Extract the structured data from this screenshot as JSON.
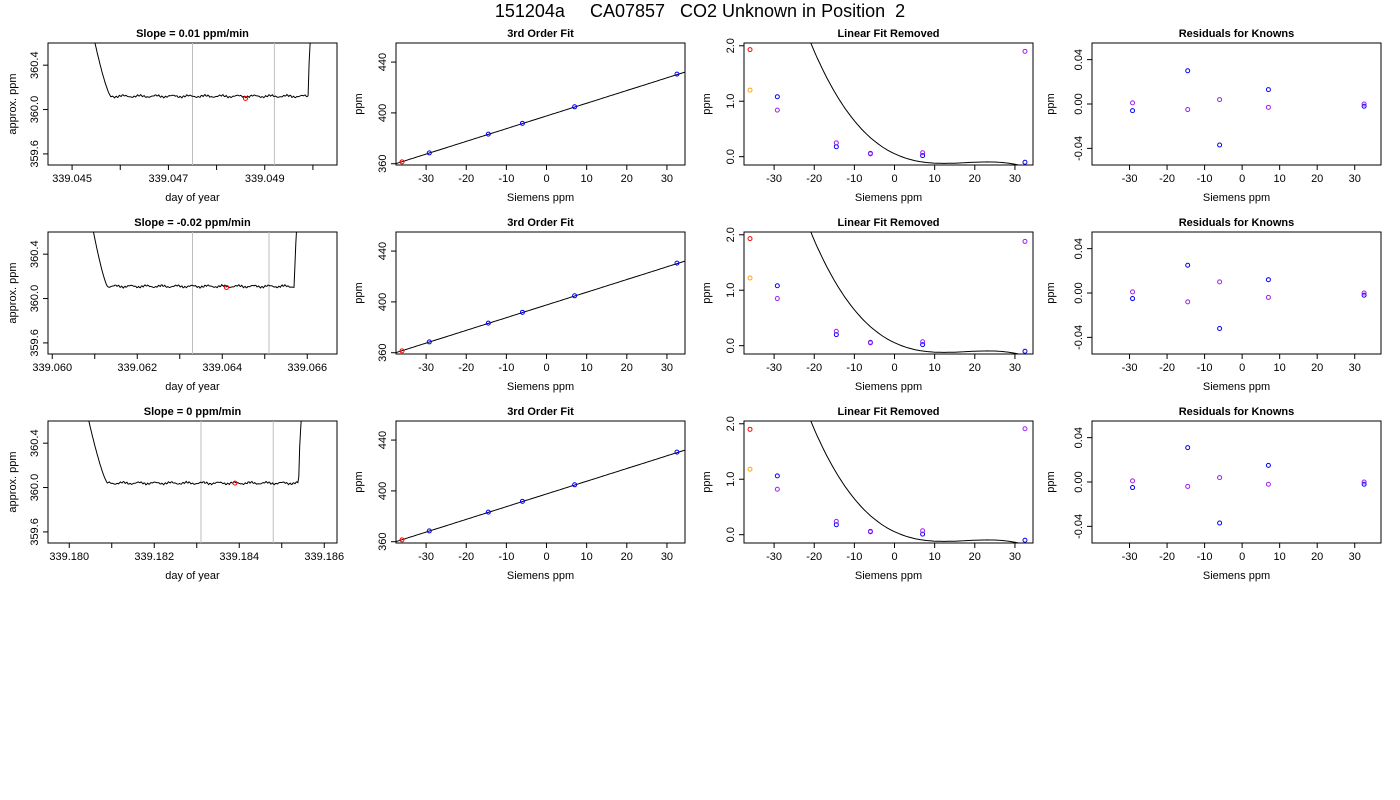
{
  "page_title": "151204a     CA07857   CO2 Unknown in Position  2",
  "colors": {
    "trace": "#000000",
    "guide_line": "#bebebe",
    "marker_red": "#ff0000",
    "marker_blue": "#0000ff",
    "marker_magenta": "#a020f0",
    "marker_orange": "#ffa500"
  },
  "chart_data": [
    {
      "id": "r0c0",
      "type": "line",
      "title": "Slope =  0.01  ppm/min",
      "xlabel": "day of year",
      "ylabel": "approx. ppm",
      "xlim": [
        339.0445,
        339.0505
      ],
      "ylim": [
        359.5,
        360.6
      ],
      "xticks": [
        339.045,
        339.046,
        339.047,
        339.048,
        339.049,
        339.05
      ],
      "xticklabels": [
        "339.045",
        "",
        "339.047",
        "",
        "339.049",
        ""
      ],
      "yticks": [
        359.6,
        360.0,
        360.4
      ],
      "yticklabels": [
        "359.6",
        "360.0",
        "360.4"
      ],
      "vlines": [
        339.0475,
        339.0492
      ],
      "trace": {
        "start": 339.0453,
        "end": 339.0501,
        "level": 360.12,
        "jump": 339.0458,
        "rise": 339.0499
      },
      "markers": [
        {
          "x": 339.0486,
          "y": 360.1,
          "color": "red"
        }
      ]
    },
    {
      "id": "r0c1",
      "type": "scatter",
      "title": "3rd Order Fit",
      "xlabel": "Siemens ppm",
      "ylabel": "ppm",
      "xlim": [
        -37.5,
        34.5
      ],
      "ylim": [
        359,
        455
      ],
      "xticks": [
        -30,
        -20,
        -10,
        0,
        10,
        20,
        30
      ],
      "xticklabels": [
        "-30",
        "-20",
        "-10",
        "0",
        "10",
        "20",
        "30"
      ],
      "yticks": [
        360,
        400,
        440
      ],
      "yticklabels": [
        "360",
        "400",
        "440"
      ],
      "curve": {
        "kind": "linear",
        "slope": 1.0,
        "intercept": 397.6,
        "range": [
          -37.5,
          34.5
        ]
      },
      "points": [
        {
          "x": -36.0,
          "y": 361.5,
          "color": "red"
        },
        {
          "x": -29.2,
          "y": 368.5,
          "color": "blue"
        },
        {
          "x": -14.5,
          "y": 383.3,
          "color": "blue"
        },
        {
          "x": -6.0,
          "y": 391.8,
          "color": "blue"
        },
        {
          "x": 7.0,
          "y": 404.8,
          "color": "blue"
        },
        {
          "x": 32.5,
          "y": 430.5,
          "color": "blue"
        }
      ]
    },
    {
      "id": "r0c2",
      "type": "scatter",
      "title": "Linear Fit Removed",
      "xlabel": "Siemens ppm",
      "ylabel": "ppm",
      "xlim": [
        -37.5,
        34.5
      ],
      "ylim": [
        -0.15,
        2.05
      ],
      "xticks": [
        -30,
        -20,
        -10,
        0,
        10,
        20,
        30
      ],
      "xticklabels": [
        "-30",
        "-20",
        "-10",
        "0",
        "10",
        "20",
        "30"
      ],
      "yticks": [
        0.0,
        1.0,
        2.0
      ],
      "yticklabels": [
        "0.0",
        "1.0",
        "2.0"
      ],
      "curve": {
        "kind": "cubic",
        "coef": [
          0.0532,
          -0.0342,
          0.00212,
          -3.97e-05
        ],
        "range": [
          -36.0,
          33.5
        ]
      },
      "points": [
        {
          "x": -36.0,
          "y": 1.93,
          "color": "red"
        },
        {
          "x": -36.0,
          "y": 1.2,
          "color": "orange"
        },
        {
          "x": -29.2,
          "y": 1.08,
          "color": "blue"
        },
        {
          "x": -29.2,
          "y": 0.84,
          "color": "magenta"
        },
        {
          "x": -14.5,
          "y": 0.18,
          "color": "blue"
        },
        {
          "x": -14.5,
          "y": 0.25,
          "color": "magenta"
        },
        {
          "x": -6.0,
          "y": 0.06,
          "color": "blue"
        },
        {
          "x": -6.0,
          "y": 0.05,
          "color": "magenta"
        },
        {
          "x": 7.0,
          "y": 0.02,
          "color": "blue"
        },
        {
          "x": 7.0,
          "y": 0.07,
          "color": "magenta"
        },
        {
          "x": 32.5,
          "y": -0.1,
          "color": "blue"
        },
        {
          "x": 32.5,
          "y": 1.9,
          "color": "magenta"
        }
      ]
    },
    {
      "id": "r0c3",
      "type": "scatter",
      "title": "Residuals for Knowns",
      "xlabel": "Siemens ppm",
      "ylabel": "ppm",
      "xlim": [
        -40,
        37
      ],
      "ylim": [
        -0.055,
        0.055
      ],
      "xticks": [
        -30,
        -20,
        -10,
        0,
        10,
        20,
        30
      ],
      "xticklabels": [
        "-30",
        "-20",
        "-10",
        "0",
        "10",
        "20",
        "30"
      ],
      "yticks": [
        -0.04,
        0.0,
        0.04
      ],
      "yticklabels": [
        "-0.04",
        "0.00",
        "0.04"
      ],
      "points": [
        {
          "x": -29.2,
          "y": -0.006,
          "color": "blue"
        },
        {
          "x": -29.2,
          "y": 0.001,
          "color": "magenta"
        },
        {
          "x": -14.5,
          "y": 0.03,
          "color": "blue"
        },
        {
          "x": -14.5,
          "y": -0.005,
          "color": "magenta"
        },
        {
          "x": -6.0,
          "y": -0.037,
          "color": "blue"
        },
        {
          "x": -6.0,
          "y": 0.004,
          "color": "magenta"
        },
        {
          "x": 7.0,
          "y": 0.013,
          "color": "blue"
        },
        {
          "x": 7.0,
          "y": -0.003,
          "color": "magenta"
        },
        {
          "x": 32.5,
          "y": -0.002,
          "color": "blue"
        },
        {
          "x": 32.5,
          "y": 0.0,
          "color": "magenta"
        }
      ]
    },
    {
      "id": "r1c0",
      "type": "line",
      "title": "Slope =  -0.02  ppm/min",
      "xlabel": "day of year",
      "ylabel": "approx. ppm",
      "xlim": [
        339.0599,
        339.0667
      ],
      "ylim": [
        359.5,
        360.6
      ],
      "xticks": [
        339.06,
        339.061,
        339.062,
        339.063,
        339.064,
        339.065,
        339.066
      ],
      "xticklabels": [
        "339.060",
        "",
        "339.062",
        "",
        "339.064",
        "",
        "339.066"
      ],
      "yticks": [
        359.6,
        360.0,
        360.4
      ],
      "yticklabels": [
        "359.6",
        "360.0",
        "360.4"
      ],
      "vlines": [
        339.0633,
        339.0651
      ],
      "trace": {
        "start": 339.0608,
        "end": 339.0659,
        "level": 360.11,
        "jump": 339.0613,
        "rise": 339.0657
      },
      "markers": [
        {
          "x": 339.0641,
          "y": 360.1,
          "color": "red"
        }
      ]
    },
    {
      "id": "r1c1",
      "type": "scatter",
      "title": "3rd Order Fit",
      "xlabel": "Siemens ppm",
      "ylabel": "ppm",
      "xlim": [
        -37.5,
        34.5
      ],
      "ylim": [
        359,
        455
      ],
      "xticks": [
        -30,
        -20,
        -10,
        0,
        10,
        20,
        30
      ],
      "xticklabels": [
        "-30",
        "-20",
        "-10",
        "0",
        "10",
        "20",
        "30"
      ],
      "yticks": [
        360,
        400,
        440
      ],
      "yticklabels": [
        "360",
        "400",
        "440"
      ],
      "curve": {
        "kind": "linear",
        "slope": 1.0,
        "intercept": 397.6,
        "range": [
          -37.5,
          34.5
        ]
      },
      "points": [
        {
          "x": -36.0,
          "y": 361.5,
          "color": "red"
        },
        {
          "x": -29.2,
          "y": 368.5,
          "color": "blue"
        },
        {
          "x": -14.5,
          "y": 383.3,
          "color": "blue"
        },
        {
          "x": -6.0,
          "y": 391.8,
          "color": "blue"
        },
        {
          "x": 7.0,
          "y": 404.8,
          "color": "blue"
        },
        {
          "x": 32.5,
          "y": 430.5,
          "color": "blue"
        }
      ]
    },
    {
      "id": "r1c2",
      "type": "scatter",
      "title": "Linear Fit Removed",
      "xlabel": "Siemens ppm",
      "ylabel": "ppm",
      "xlim": [
        -37.5,
        34.5
      ],
      "ylim": [
        -0.15,
        2.05
      ],
      "xticks": [
        -30,
        -20,
        -10,
        0,
        10,
        20,
        30
      ],
      "xticklabels": [
        "-30",
        "-20",
        "-10",
        "0",
        "10",
        "20",
        "30"
      ],
      "yticks": [
        0.0,
        1.0,
        2.0
      ],
      "yticklabels": [
        "0.0",
        "1.0",
        "2.0"
      ],
      "curve": {
        "kind": "cubic",
        "coef": [
          0.0532,
          -0.0342,
          0.00212,
          -3.97e-05
        ],
        "range": [
          -36.0,
          33.5
        ]
      },
      "points": [
        {
          "x": -36.0,
          "y": 1.93,
          "color": "red"
        },
        {
          "x": -36.0,
          "y": 1.22,
          "color": "orange"
        },
        {
          "x": -29.2,
          "y": 1.08,
          "color": "blue"
        },
        {
          "x": -29.2,
          "y": 0.85,
          "color": "magenta"
        },
        {
          "x": -14.5,
          "y": 0.2,
          "color": "blue"
        },
        {
          "x": -14.5,
          "y": 0.26,
          "color": "magenta"
        },
        {
          "x": -6.0,
          "y": 0.06,
          "color": "blue"
        },
        {
          "x": -6.0,
          "y": 0.05,
          "color": "magenta"
        },
        {
          "x": 7.0,
          "y": 0.02,
          "color": "blue"
        },
        {
          "x": 7.0,
          "y": 0.07,
          "color": "magenta"
        },
        {
          "x": 32.5,
          "y": -0.1,
          "color": "blue"
        },
        {
          "x": 32.5,
          "y": 1.88,
          "color": "magenta"
        }
      ]
    },
    {
      "id": "r1c3",
      "type": "scatter",
      "title": "Residuals for Knowns",
      "xlabel": "Siemens ppm",
      "ylabel": "ppm",
      "xlim": [
        -40,
        37
      ],
      "ylim": [
        -0.055,
        0.055
      ],
      "xticks": [
        -30,
        -20,
        -10,
        0,
        10,
        20,
        30
      ],
      "xticklabels": [
        "-30",
        "-20",
        "-10",
        "0",
        "10",
        "20",
        "30"
      ],
      "yticks": [
        -0.04,
        0.0,
        0.04
      ],
      "yticklabels": [
        "-0.04",
        "0.00",
        "0.04"
      ],
      "points": [
        {
          "x": -29.2,
          "y": -0.005,
          "color": "blue"
        },
        {
          "x": -29.2,
          "y": 0.001,
          "color": "magenta"
        },
        {
          "x": -14.5,
          "y": 0.025,
          "color": "blue"
        },
        {
          "x": -14.5,
          "y": -0.008,
          "color": "magenta"
        },
        {
          "x": -6.0,
          "y": -0.032,
          "color": "blue"
        },
        {
          "x": -6.0,
          "y": 0.01,
          "color": "magenta"
        },
        {
          "x": 7.0,
          "y": 0.012,
          "color": "blue"
        },
        {
          "x": 7.0,
          "y": -0.004,
          "color": "magenta"
        },
        {
          "x": 32.5,
          "y": -0.002,
          "color": "blue"
        },
        {
          "x": 32.5,
          "y": 0.0,
          "color": "magenta"
        }
      ]
    },
    {
      "id": "r2c0",
      "type": "line",
      "title": "Slope =  0  ppm/min",
      "xlabel": "day of year",
      "ylabel": "approx. ppm",
      "xlim": [
        339.1795,
        339.1863
      ],
      "ylim": [
        359.5,
        360.6
      ],
      "xticks": [
        339.18,
        339.181,
        339.182,
        339.183,
        339.184,
        339.185,
        339.186
      ],
      "xticklabels": [
        "339.180",
        "",
        "339.182",
        "",
        "339.184",
        "",
        "339.186"
      ],
      "yticks": [
        359.6,
        360.0,
        360.4
      ],
      "yticklabels": [
        "359.6",
        "360.0",
        "360.4"
      ],
      "vlines": [
        339.1831,
        339.1848
      ],
      "trace": {
        "start": 339.1803,
        "end": 339.1856,
        "level": 360.04,
        "jump": 339.1809,
        "rise": 339.1854
      },
      "markers": [
        {
          "x": 339.1839,
          "y": 360.04,
          "color": "red"
        }
      ]
    },
    {
      "id": "r2c1",
      "type": "scatter",
      "title": "3rd Order Fit",
      "xlabel": "Siemens ppm",
      "ylabel": "ppm",
      "xlim": [
        -37.5,
        34.5
      ],
      "ylim": [
        359,
        455
      ],
      "xticks": [
        -30,
        -20,
        -10,
        0,
        10,
        20,
        30
      ],
      "xticklabels": [
        "-30",
        "-20",
        "-10",
        "0",
        "10",
        "20",
        "30"
      ],
      "yticks": [
        360,
        400,
        440
      ],
      "yticklabels": [
        "360",
        "400",
        "440"
      ],
      "curve": {
        "kind": "linear",
        "slope": 1.0,
        "intercept": 397.6,
        "range": [
          -37.5,
          34.5
        ]
      },
      "points": [
        {
          "x": -36.0,
          "y": 361.5,
          "color": "red"
        },
        {
          "x": -29.2,
          "y": 368.5,
          "color": "blue"
        },
        {
          "x": -14.5,
          "y": 383.3,
          "color": "blue"
        },
        {
          "x": -6.0,
          "y": 391.8,
          "color": "blue"
        },
        {
          "x": 7.0,
          "y": 404.8,
          "color": "blue"
        },
        {
          "x": 32.5,
          "y": 430.5,
          "color": "blue"
        }
      ]
    },
    {
      "id": "r2c2",
      "type": "scatter",
      "title": "Linear Fit Removed",
      "xlabel": "Siemens ppm",
      "ylabel": "ppm",
      "xlim": [
        -37.5,
        34.5
      ],
      "ylim": [
        -0.15,
        2.05
      ],
      "xticks": [
        -30,
        -20,
        -10,
        0,
        10,
        20,
        30
      ],
      "xticklabels": [
        "-30",
        "-20",
        "-10",
        "0",
        "10",
        "20",
        "30"
      ],
      "yticks": [
        0.0,
        1.0,
        2.0
      ],
      "yticklabels": [
        "0.0",
        "1.0",
        "2.0"
      ],
      "curve": {
        "kind": "cubic",
        "coef": [
          0.0532,
          -0.0342,
          0.00212,
          -3.97e-05
        ],
        "range": [
          -36.0,
          33.5
        ]
      },
      "points": [
        {
          "x": -36.0,
          "y": 1.9,
          "color": "red"
        },
        {
          "x": -36.0,
          "y": 1.18,
          "color": "orange"
        },
        {
          "x": -29.2,
          "y": 1.06,
          "color": "blue"
        },
        {
          "x": -29.2,
          "y": 0.82,
          "color": "magenta"
        },
        {
          "x": -14.5,
          "y": 0.18,
          "color": "blue"
        },
        {
          "x": -14.5,
          "y": 0.24,
          "color": "magenta"
        },
        {
          "x": -6.0,
          "y": 0.06,
          "color": "blue"
        },
        {
          "x": -6.0,
          "y": 0.05,
          "color": "magenta"
        },
        {
          "x": 7.0,
          "y": 0.01,
          "color": "blue"
        },
        {
          "x": 7.0,
          "y": 0.07,
          "color": "magenta"
        },
        {
          "x": 32.5,
          "y": -0.1,
          "color": "blue"
        },
        {
          "x": 32.5,
          "y": 1.91,
          "color": "magenta"
        }
      ]
    },
    {
      "id": "r2c3",
      "type": "scatter",
      "title": "Residuals for Knowns",
      "xlabel": "Siemens ppm",
      "ylabel": "ppm",
      "xlim": [
        -40,
        37
      ],
      "ylim": [
        -0.055,
        0.055
      ],
      "xticks": [
        -30,
        -20,
        -10,
        0,
        10,
        20,
        30
      ],
      "xticklabels": [
        "-30",
        "-20",
        "-10",
        "0",
        "10",
        "20",
        "30"
      ],
      "yticks": [
        -0.04,
        0.0,
        0.04
      ],
      "yticklabels": [
        "-0.04",
        "0.00",
        "0.04"
      ],
      "points": [
        {
          "x": -29.2,
          "y": -0.005,
          "color": "blue"
        },
        {
          "x": -29.2,
          "y": 0.001,
          "color": "magenta"
        },
        {
          "x": -14.5,
          "y": 0.031,
          "color": "blue"
        },
        {
          "x": -14.5,
          "y": -0.004,
          "color": "magenta"
        },
        {
          "x": -6.0,
          "y": -0.037,
          "color": "blue"
        },
        {
          "x": -6.0,
          "y": 0.004,
          "color": "magenta"
        },
        {
          "x": 7.0,
          "y": 0.015,
          "color": "blue"
        },
        {
          "x": 7.0,
          "y": -0.002,
          "color": "magenta"
        },
        {
          "x": 32.5,
          "y": -0.002,
          "color": "blue"
        },
        {
          "x": 32.5,
          "y": 0.0,
          "color": "magenta"
        }
      ]
    }
  ]
}
